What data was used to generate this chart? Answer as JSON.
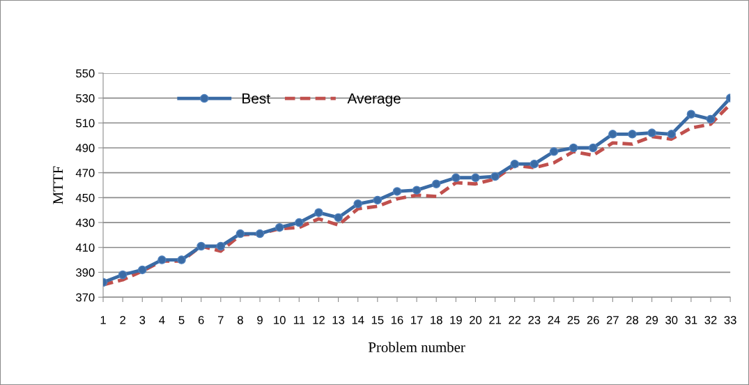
{
  "chart_data": {
    "type": "line",
    "xlabel": "Problem number",
    "ylabel": "MTTF",
    "categories": [
      "1",
      "2",
      "3",
      "4",
      "5",
      "6",
      "7",
      "8",
      "9",
      "10",
      "11",
      "12",
      "13",
      "14",
      "15",
      "16",
      "17",
      "18",
      "19",
      "20",
      "21",
      "22",
      "23",
      "24",
      "25",
      "26",
      "27",
      "28",
      "29",
      "30",
      "31",
      "32",
      "33"
    ],
    "series": [
      {
        "name": "Best",
        "color": "#3a6ba5",
        "marker": "circle",
        "line_style": "solid",
        "values": [
          382,
          388,
          392,
          400,
          400,
          411,
          411,
          421,
          421,
          426,
          430,
          438,
          434,
          445,
          448,
          455,
          456,
          461,
          466,
          466,
          467,
          477,
          477,
          487,
          490,
          490,
          501,
          501,
          502,
          501,
          517,
          513,
          530
        ]
      },
      {
        "name": "Average",
        "color": "#c0504d",
        "marker": "none",
        "line_style": "dashed",
        "values": [
          380,
          384,
          391,
          399,
          399,
          411,
          407,
          420,
          421,
          425,
          426,
          433,
          428,
          441,
          443,
          449,
          452,
          451,
          462,
          461,
          465,
          476,
          474,
          478,
          487,
          484,
          494,
          493,
          499,
          497,
          506,
          509,
          525
        ]
      }
    ],
    "ylim": [
      370,
      550
    ],
    "yticks": [
      370,
      390,
      410,
      430,
      450,
      470,
      490,
      510,
      530,
      550
    ],
    "grid": "y",
    "legend": "top left"
  }
}
